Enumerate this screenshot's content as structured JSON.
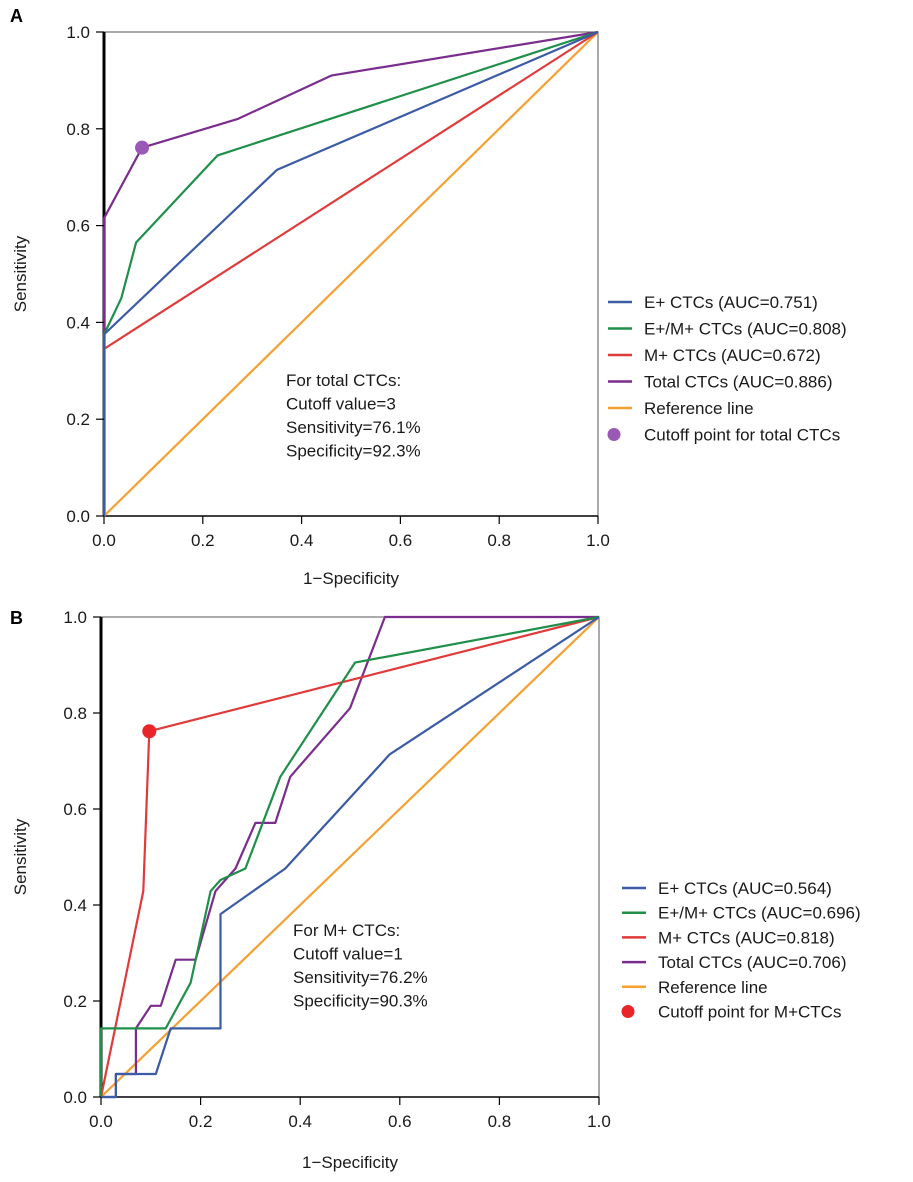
{
  "chart_data": [
    {
      "panel_label": "A",
      "type": "line",
      "xlabel": "1−Specificity",
      "ylabel": "Sensitivity",
      "xlim": [
        0,
        1
      ],
      "ylim": [
        0,
        1
      ],
      "x_ticks": [
        "0.0",
        "0.2",
        "0.4",
        "0.6",
        "0.8",
        "1.0"
      ],
      "y_ticks": [
        "0.0",
        "0.2",
        "0.4",
        "0.6",
        "0.8",
        "1.0"
      ],
      "grid": false,
      "legend_position": "right",
      "series": [
        {
          "name": "E+ CTCs (AUC=0.751)",
          "color": "#3b5ba5",
          "x": [
            0,
            0,
            0.35,
            1
          ],
          "y": [
            0,
            0.375,
            0.715,
            1
          ]
        },
        {
          "name": "E+/M+ CTCs (AUC=0.808)",
          "color": "#1f8f4a",
          "x": [
            0,
            0,
            0.035,
            0.065,
            0.23,
            1
          ],
          "y": [
            0,
            0.375,
            0.45,
            0.565,
            0.745,
            1
          ]
        },
        {
          "name": "M+ CTCs (AUC=0.672)",
          "color": "#e03a3a",
          "x": [
            0,
            0,
            1
          ],
          "y": [
            0,
            0.345,
            1
          ]
        },
        {
          "name": "Total CTCs (AUC=0.886)",
          "color": "#7b2d8e",
          "x": [
            0,
            0,
            0.077,
            0.27,
            0.46,
            1
          ],
          "y": [
            0,
            0.615,
            0.761,
            0.82,
            0.91,
            1
          ]
        },
        {
          "name": "Reference line",
          "color": "#f5a031",
          "x": [
            0,
            1
          ],
          "y": [
            0,
            1
          ]
        }
      ],
      "cutoff_point": {
        "name": "Cutoff point for total CTCs",
        "color": "#9b59b6",
        "x": 0.077,
        "y": 0.761
      },
      "annotation": [
        "For total CTCs:",
        "Cutoff value=3",
        "Sensitivity=76.1%",
        "Specificity=92.3%"
      ]
    },
    {
      "panel_label": "B",
      "type": "line",
      "xlabel": "1−Specificity",
      "ylabel": "Sensitivity",
      "xlim": [
        0,
        1
      ],
      "ylim": [
        0,
        1
      ],
      "x_ticks": [
        "0.0",
        "0.2",
        "0.4",
        "0.6",
        "0.8",
        "1.0"
      ],
      "y_ticks": [
        "0.0",
        "0.2",
        "0.4",
        "0.6",
        "0.8",
        "1.0"
      ],
      "grid": false,
      "legend_position": "right",
      "series": [
        {
          "name": "E+ CTCs (AUC=0.564)",
          "color": "#3b5ba5",
          "x": [
            0,
            0.03,
            0.03,
            0.11,
            0.11,
            0.14,
            0.14,
            0.23,
            0.23,
            0.24,
            0.24,
            0.37,
            0.58,
            1
          ],
          "y": [
            0,
            0,
            0.048,
            0.048,
            0.048,
            0.143,
            0.143,
            0.143,
            0.143,
            0.143,
            0.381,
            0.476,
            0.714,
            1
          ]
        },
        {
          "name": "E+/M+ CTCs (AUC=0.696)",
          "color": "#1f8f4a",
          "x": [
            0,
            0,
            0.13,
            0.18,
            0.22,
            0.24,
            0.29,
            0.36,
            0.51,
            1
          ],
          "y": [
            0,
            0.143,
            0.143,
            0.238,
            0.429,
            0.452,
            0.476,
            0.667,
            0.905,
            1
          ]
        },
        {
          "name": "M+ CTCs (AUC=0.818)",
          "color": "#e03a3a",
          "x": [
            0,
            0.085,
            0.097,
            1
          ],
          "y": [
            0,
            0.429,
            0.762,
            1
          ]
        },
        {
          "name": "Total CTCs (AUC=0.706)",
          "color": "#7b2d8e",
          "x": [
            0,
            0.03,
            0.03,
            0.07,
            0.07,
            0.1,
            0.12,
            0.15,
            0.19,
            0.23,
            0.27,
            0.31,
            0.35,
            0.38,
            0.5,
            0.57,
            1
          ],
          "y": [
            0,
            0,
            0.048,
            0.048,
            0.143,
            0.19,
            0.19,
            0.286,
            0.286,
            0.429,
            0.476,
            0.571,
            0.571,
            0.667,
            0.81,
            1,
            1
          ]
        },
        {
          "name": "Reference line",
          "color": "#f5a031",
          "x": [
            0,
            1
          ],
          "y": [
            0,
            1
          ]
        }
      ],
      "cutoff_point": {
        "name": "Cutoff point for M+CTCs",
        "color": "#e8262a",
        "x": 0.097,
        "y": 0.762
      },
      "annotation": [
        "For M+ CTCs:",
        "Cutoff value=1",
        "Sensitivity=76.2%",
        "Specificity=90.3%"
      ]
    }
  ]
}
